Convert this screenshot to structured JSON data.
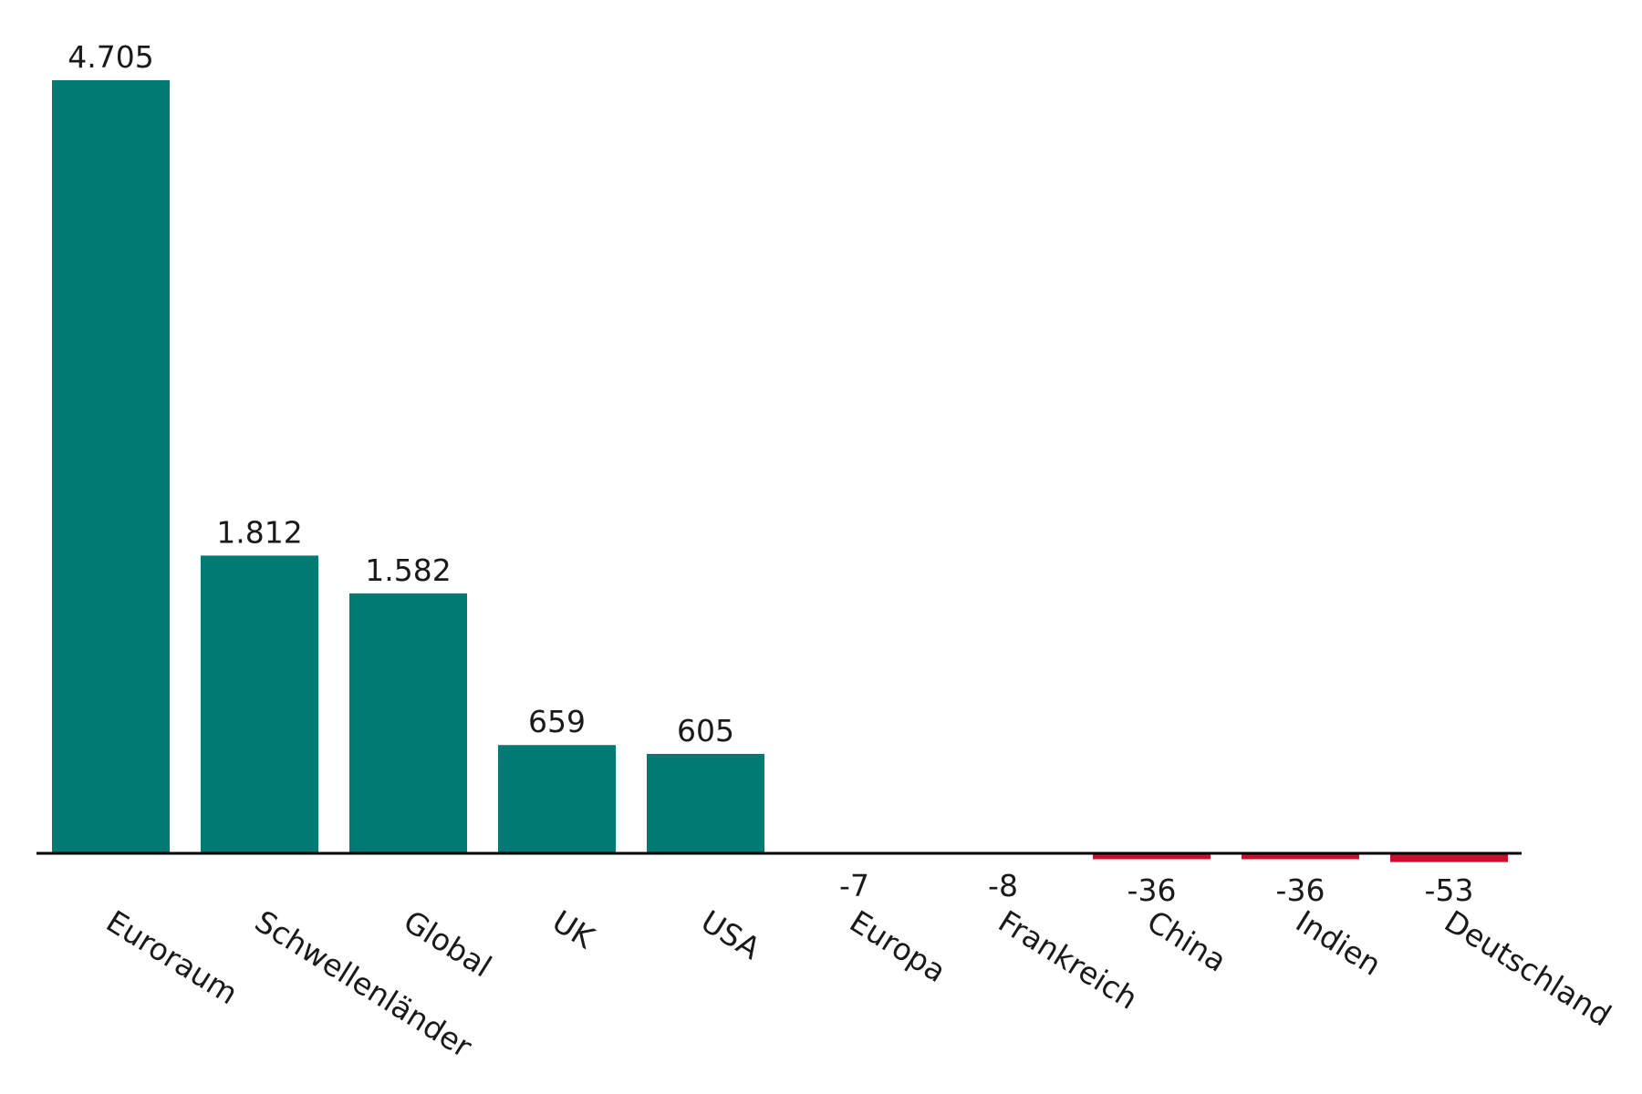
{
  "chart_data": {
    "type": "bar",
    "categories": [
      "Euroraum",
      "Schwellenländer",
      "Global",
      "UK",
      "USA",
      "Europa",
      "Frankreich",
      "China",
      "Indien",
      "Deutschland"
    ],
    "values": [
      4705,
      1812,
      1582,
      659,
      605,
      -7,
      -8,
      -36,
      -36,
      -53
    ],
    "data_labels": [
      "4.705",
      "1.812",
      "1.582",
      "659",
      "605",
      "-7",
      "-8",
      "-36",
      "-36",
      "-53"
    ],
    "title": "",
    "xlabel": "",
    "ylabel": "",
    "ylim": [
      -53,
      4705
    ],
    "grid": false,
    "legend": "none",
    "colors": {
      "positive": "#007A73",
      "negative": "#C8102E",
      "axis": "#000000",
      "text": "#1a1a1a"
    }
  }
}
